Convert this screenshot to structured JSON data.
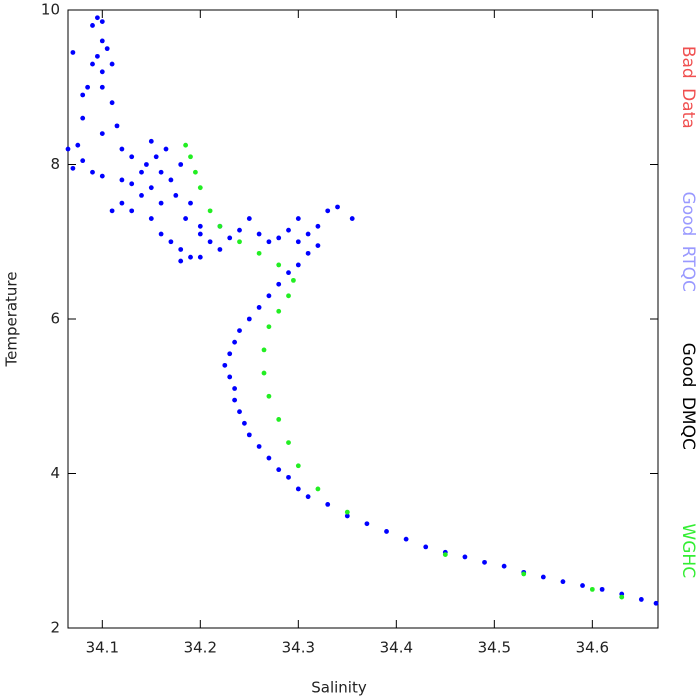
{
  "chart_data": {
    "type": "scatter",
    "xlabel": "Salinity",
    "ylabel": "Temperature",
    "xlim": [
      34.065,
      34.667
    ],
    "ylim": [
      2,
      10
    ],
    "xticks": [
      34.1,
      34.2,
      34.3,
      34.4,
      34.5,
      34.6
    ],
    "yticks": [
      2,
      4,
      6,
      8,
      10
    ],
    "series": [
      {
        "name": "Bad Data",
        "color": "#ff0000",
        "label_color": "#f05050",
        "x": [],
        "y": []
      },
      {
        "name": "Good RTQC",
        "color": "#0000ff",
        "label_color": "#9999ff",
        "x": [
          34.09,
          34.095,
          34.1,
          34.1,
          34.095,
          34.09,
          34.1,
          34.105,
          34.11,
          34.085,
          34.1,
          34.07,
          34.08,
          34.08,
          34.11,
          34.115,
          34.1,
          34.12,
          34.065,
          34.075,
          34.08,
          34.07,
          34.09,
          34.1,
          34.12,
          34.13,
          34.15,
          34.155,
          34.16,
          34.15,
          34.14,
          34.16,
          34.17,
          34.18,
          34.13,
          34.145,
          34.165,
          34.175,
          34.19,
          34.185,
          34.2,
          34.15,
          34.12,
          34.11,
          34.13,
          34.14,
          34.17,
          34.18,
          34.19,
          34.2,
          34.18,
          34.21,
          34.22,
          34.16,
          34.2,
          34.22,
          34.24,
          34.26,
          34.28,
          34.3,
          34.31,
          34.32,
          34.25,
          34.27,
          34.29,
          34.23,
          34.3,
          34.34,
          34.355,
          34.33,
          34.32,
          34.31,
          34.3,
          34.29,
          34.28,
          34.27,
          34.26,
          34.25,
          34.24,
          34.235,
          34.23,
          34.225,
          34.23,
          34.235,
          34.235,
          34.24,
          34.245,
          34.25,
          34.26,
          34.27,
          34.28,
          34.29,
          34.3,
          34.31,
          34.33,
          34.35,
          34.37,
          34.39,
          34.41,
          34.43,
          34.45,
          34.47,
          34.49,
          34.51,
          34.53,
          34.55,
          34.57,
          34.59,
          34.61,
          34.63,
          34.65,
          34.665
        ],
        "y": [
          9.8,
          9.9,
          9.85,
          9.6,
          9.4,
          9.3,
          9.2,
          9.5,
          9.3,
          9.0,
          9.0,
          9.45,
          8.9,
          8.6,
          8.8,
          8.5,
          8.4,
          8.2,
          8.2,
          8.25,
          8.05,
          7.95,
          7.9,
          7.85,
          7.8,
          7.75,
          8.3,
          8.1,
          7.9,
          7.7,
          7.6,
          7.5,
          7.8,
          8.0,
          7.4,
          8.0,
          8.2,
          7.6,
          7.5,
          7.3,
          7.2,
          7.3,
          7.5,
          7.4,
          8.1,
          7.9,
          7.0,
          6.9,
          6.8,
          6.8,
          6.75,
          7.0,
          6.9,
          7.1,
          7.1,
          7.2,
          7.15,
          7.1,
          7.05,
          7.0,
          7.1,
          7.2,
          7.3,
          7.0,
          7.15,
          7.05,
          7.3,
          7.45,
          7.3,
          7.4,
          6.95,
          6.85,
          6.7,
          6.6,
          6.45,
          6.3,
          6.15,
          6.0,
          5.85,
          5.7,
          5.55,
          5.4,
          5.25,
          5.1,
          4.95,
          4.8,
          4.65,
          4.5,
          4.35,
          4.2,
          4.05,
          3.95,
          3.8,
          3.7,
          3.6,
          3.45,
          3.35,
          3.25,
          3.15,
          3.05,
          2.98,
          2.92,
          2.85,
          2.8,
          2.72,
          2.66,
          2.6,
          2.55,
          2.5,
          2.44,
          2.37,
          2.32
        ]
      },
      {
        "name": "Good DMQC",
        "color": "#000000",
        "label_color": "#000000",
        "x": [],
        "y": []
      },
      {
        "name": "WGHC",
        "color": "#22ee22",
        "label_color": "#33ee33",
        "x": [
          34.185,
          34.19,
          34.195,
          34.2,
          34.21,
          34.22,
          34.24,
          34.26,
          34.28,
          34.295,
          34.29,
          34.28,
          34.27,
          34.265,
          34.265,
          34.27,
          34.28,
          34.29,
          34.3,
          34.32,
          34.35,
          34.45,
          34.53,
          34.6,
          34.63
        ],
        "y": [
          8.25,
          8.1,
          7.9,
          7.7,
          7.4,
          7.2,
          7.0,
          6.85,
          6.7,
          6.5,
          6.3,
          6.1,
          5.9,
          5.6,
          5.3,
          5.0,
          4.7,
          4.4,
          4.1,
          3.8,
          3.5,
          2.95,
          2.7,
          2.5,
          2.4
        ]
      }
    ]
  }
}
